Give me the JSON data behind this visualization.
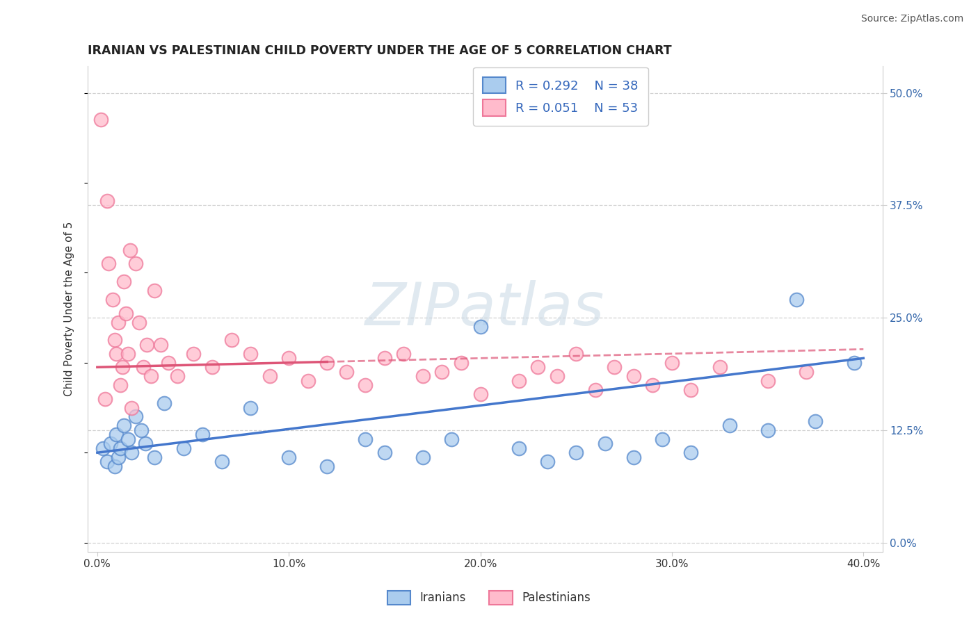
{
  "title": "IRANIAN VS PALESTINIAN CHILD POVERTY UNDER THE AGE OF 5 CORRELATION CHART",
  "source": "Source: ZipAtlas.com",
  "ylabel_label": "Child Poverty Under the Age of 5",
  "xlabel_vals": [
    0,
    10,
    20,
    30,
    40
  ],
  "ylabel_vals": [
    0,
    12.5,
    25.0,
    37.5,
    50.0
  ],
  "xlim": [
    -0.5,
    41
  ],
  "ylim": [
    -1,
    53
  ],
  "iranian_R": 0.292,
  "iranian_N": 38,
  "palestinian_R": 0.051,
  "palestinian_N": 53,
  "iranian_fill_color": "#aaccee",
  "iranian_edge_color": "#5588cc",
  "palestinian_fill_color": "#ffbbcc",
  "palestinian_edge_color": "#ee7799",
  "iranian_line_color": "#4477cc",
  "palestinian_line_color": "#dd5577",
  "legend_text_color": "#3366bb",
  "iranians_label": "Iranians",
  "palestinians_label": "Palestinians",
  "title_color": "#222222",
  "source_color": "#555555",
  "iran_x": [
    0.3,
    0.5,
    0.7,
    0.9,
    1.0,
    1.1,
    1.2,
    1.4,
    1.6,
    1.8,
    2.0,
    2.3,
    2.5,
    3.0,
    3.5,
    4.5,
    5.5,
    6.5,
    8.0,
    10.0,
    12.0,
    14.0,
    15.0,
    17.0,
    18.5,
    20.0,
    22.0,
    23.5,
    25.0,
    26.5,
    28.0,
    29.5,
    31.0,
    33.0,
    35.0,
    36.5,
    37.5,
    39.5
  ],
  "iran_y": [
    10.5,
    9.0,
    11.0,
    8.5,
    12.0,
    9.5,
    10.5,
    13.0,
    11.5,
    10.0,
    14.0,
    12.5,
    11.0,
    9.5,
    15.5,
    10.5,
    12.0,
    9.0,
    15.0,
    9.5,
    8.5,
    11.5,
    10.0,
    9.5,
    11.5,
    24.0,
    10.5,
    9.0,
    10.0,
    11.0,
    9.5,
    11.5,
    10.0,
    13.0,
    12.5,
    27.0,
    13.5,
    20.0
  ],
  "pal_x": [
    0.2,
    0.4,
    0.5,
    0.6,
    0.8,
    0.9,
    1.0,
    1.1,
    1.2,
    1.3,
    1.4,
    1.5,
    1.6,
    1.7,
    1.8,
    2.0,
    2.2,
    2.4,
    2.6,
    2.8,
    3.0,
    3.3,
    3.7,
    4.2,
    5.0,
    6.0,
    7.0,
    8.0,
    9.0,
    10.0,
    11.0,
    12.0,
    13.0,
    14.0,
    15.0,
    16.0,
    17.0,
    18.0,
    19.0,
    20.0,
    22.0,
    23.0,
    24.0,
    25.0,
    26.0,
    27.0,
    28.0,
    29.0,
    30.0,
    31.0,
    32.5,
    35.0,
    37.0
  ],
  "pal_y": [
    47.0,
    16.0,
    38.0,
    31.0,
    27.0,
    22.5,
    21.0,
    24.5,
    17.5,
    19.5,
    29.0,
    25.5,
    21.0,
    32.5,
    15.0,
    31.0,
    24.5,
    19.5,
    22.0,
    18.5,
    28.0,
    22.0,
    20.0,
    18.5,
    21.0,
    19.5,
    22.5,
    21.0,
    18.5,
    20.5,
    18.0,
    20.0,
    19.0,
    17.5,
    20.5,
    21.0,
    18.5,
    19.0,
    20.0,
    16.5,
    18.0,
    19.5,
    18.5,
    21.0,
    17.0,
    19.5,
    18.5,
    17.5,
    20.0,
    17.0,
    19.5,
    18.0,
    19.0
  ],
  "iran_line_x0": 0,
  "iran_line_x1": 40,
  "iran_line_y0": 10.0,
  "iran_line_y1": 20.5,
  "pal_line_x0": 0,
  "pal_line_x1": 40,
  "pal_line_y0": 19.5,
  "pal_line_y1": 21.5,
  "pal_dash_start_x": 12,
  "grid_color": "#cccccc",
  "tick_color": "#3366aa",
  "scatter_size": 200,
  "scatter_alpha": 0.75,
  "scatter_lw": 1.5
}
